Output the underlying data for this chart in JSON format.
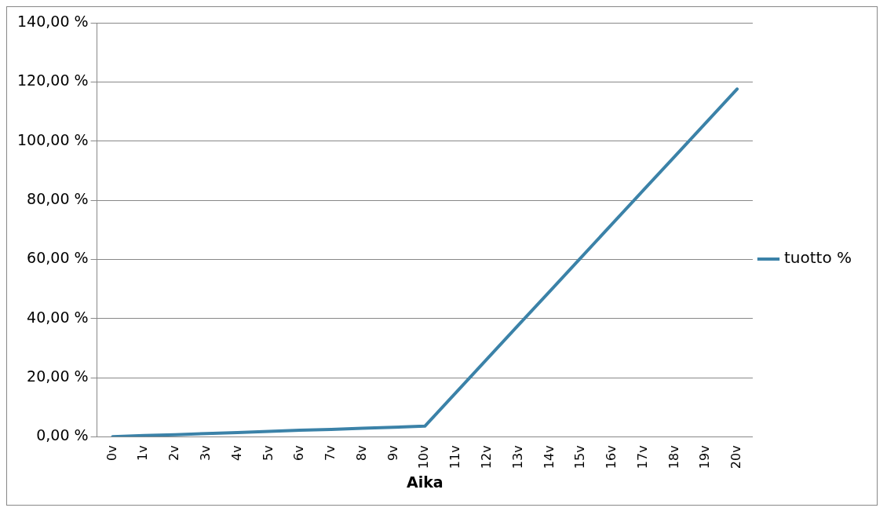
{
  "chart_data": {
    "type": "line",
    "xlabel": "Aika",
    "categories": [
      "0v",
      "1v",
      "2v",
      "3v",
      "4v",
      "5v",
      "6v",
      "7v",
      "8v",
      "9v",
      "10v",
      "11v",
      "12v",
      "13v",
      "14v",
      "15v",
      "16v",
      "17v",
      "18v",
      "19v",
      "20v"
    ],
    "series": [
      {
        "name": "tuotto %",
        "color": "#3b82a8",
        "values": [
          0,
          0.4,
          0.7,
          1.1,
          1.4,
          1.8,
          2.2,
          2.5,
          2.9,
          3.2,
          3.6,
          15,
          26.4,
          37.8,
          49.2,
          60.6,
          72,
          83.4,
          94.8,
          106.2,
          117.6
        ]
      }
    ],
    "ylim": [
      0,
      140
    ],
    "yticks": [
      {
        "value": 0,
        "label": "0,00 %"
      },
      {
        "value": 20,
        "label": "20,00 %"
      },
      {
        "value": 40,
        "label": "40,00 %"
      },
      {
        "value": 60,
        "label": "60,00 %"
      },
      {
        "value": 80,
        "label": "80,00 %"
      },
      {
        "value": 100,
        "label": "100,00 %"
      },
      {
        "value": 120,
        "label": "120,00 %"
      },
      {
        "value": 140,
        "label": "140,00 %"
      }
    ],
    "grid": "y",
    "legend": "right",
    "marker": "none",
    "line_style": "solid"
  }
}
